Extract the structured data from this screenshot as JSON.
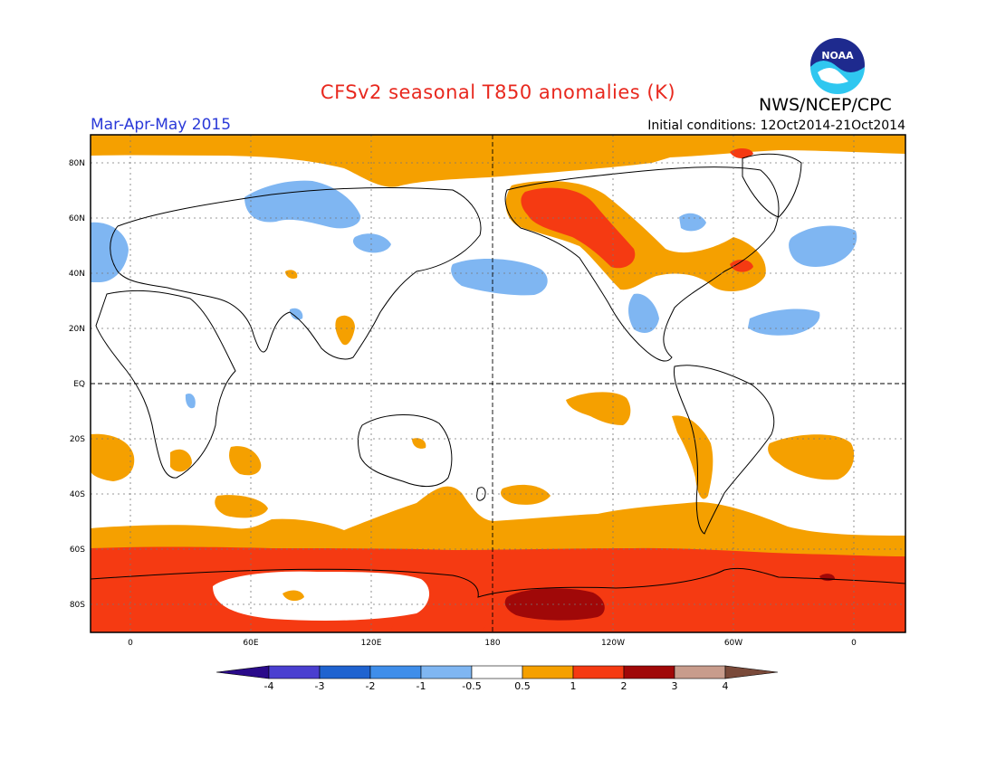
{
  "title": "CFSv2 seasonal T850 anomalies (K)",
  "agency": "NWS/NCEP/CPC",
  "logo_text": "NOAA",
  "season": "Mar-Apr-May 2015",
  "initial_conditions": "Initial conditions: 12Oct2014-21Oct2014",
  "lat_labels": [
    "80N",
    "60N",
    "40N",
    "20N",
    "EQ",
    "20S",
    "40S",
    "60S",
    "80S"
  ],
  "lon_labels": [
    "0",
    "60E",
    "120E",
    "180",
    "120W",
    "60W",
    "0"
  ],
  "colorbar": {
    "labels": [
      "-4",
      "-3",
      "-2",
      "-1",
      "-0.5",
      "0.5",
      "1",
      "2",
      "3",
      "4"
    ],
    "colors": [
      "#2a0a8a",
      "#4a3fd0",
      "#1f63d0",
      "#3f8eea",
      "#7fb6f2",
      "#ffffff",
      "#f5a000",
      "#f53a12",
      "#a00808",
      "#c89c8c",
      "#7a4a3a"
    ]
  }
}
